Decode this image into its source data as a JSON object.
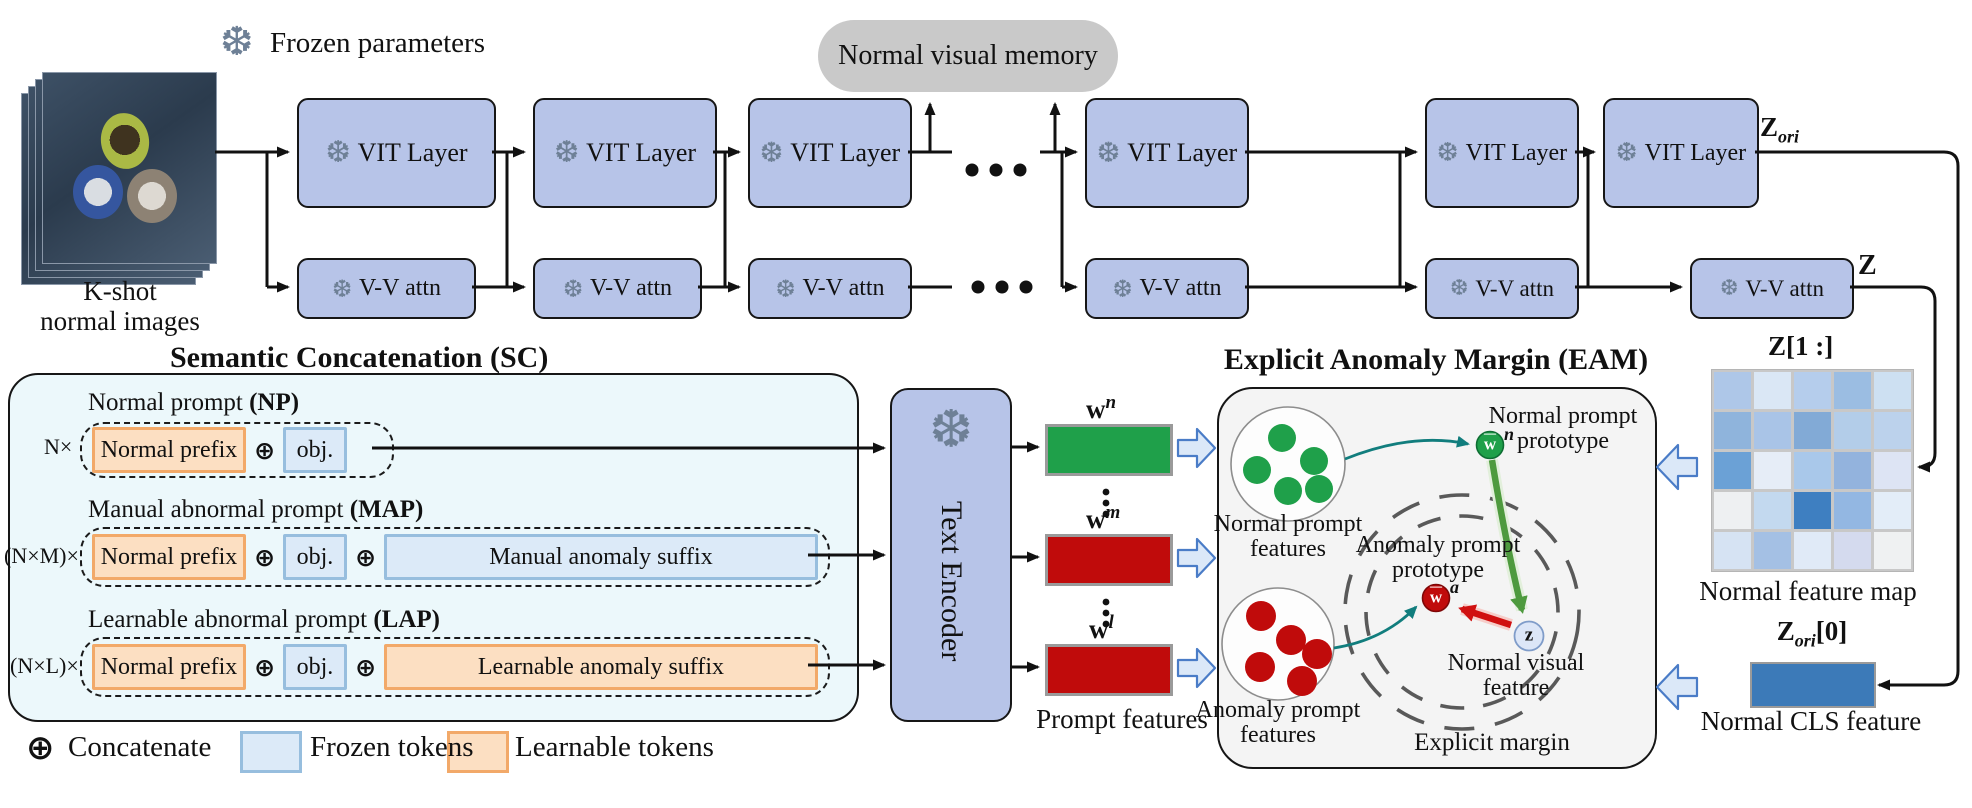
{
  "icons": {
    "snowflake": "❆",
    "dots_h": "...",
    "dots_v": "⋮"
  },
  "legend_top": {
    "label": "Frozen parameters"
  },
  "input": {
    "caption1": "K-shot",
    "caption2": "normal images"
  },
  "memory": {
    "label": "Normal visual memory"
  },
  "encoder": {
    "vit_label": "VIT Layer",
    "vv_label": "V-V attn"
  },
  "outputs": {
    "z_ori": {
      "base": "Z",
      "sub": "ori"
    },
    "z": "Z",
    "z_slice": {
      "base": "Z",
      "bracket": "[1 :]"
    },
    "z_ori0": {
      "base": "Z",
      "sub": "ori",
      "bracket": "[0]"
    },
    "feature_map_caption": "Normal feature map",
    "cls_caption": "Normal CLS feature"
  },
  "feature_map": {
    "cells": [
      "#aec7e8",
      "#dae7f5",
      "#b5cdec",
      "#9bbde2",
      "#cde0f2",
      "#8fb4dc",
      "#a9c4e7",
      "#82aad6",
      "#b3cde9",
      "#bcd2ec",
      "#6ba1d6",
      "#e6edf7",
      "#a9c8ea",
      "#93b3dd",
      "#dde4f4",
      "#eef0f2",
      "#c3d9ef",
      "#3e7fc1",
      "#93b7e2",
      "#e3edf8",
      "#d6e3f3",
      "#a4c0e4",
      "#e0eaf7",
      "#d4daee",
      "#eff1f2"
    ]
  },
  "sc": {
    "title": "Semantic Concatenation (SC)",
    "oplus": "⊕",
    "np": {
      "label": "Normal prompt ",
      "abbr": "(NP)",
      "count": "N×",
      "prefix": "Normal prefix",
      "obj": "obj."
    },
    "map": {
      "label": "Manual abnormal prompt ",
      "abbr": "(MAP)",
      "count": "(N×M)×",
      "prefix": "Normal prefix",
      "obj": "obj.",
      "suffix": "Manual anomaly suffix"
    },
    "lap": {
      "label": "Learnable abnormal prompt ",
      "abbr": "(LAP)",
      "count": "(N×L)×",
      "prefix": "Normal prefix",
      "obj": "obj.",
      "suffix": "Learnable anomaly suffix"
    }
  },
  "text_encoder": {
    "label": "Text Encoder"
  },
  "prompt_features": {
    "caption": "Prompt features",
    "wn": {
      "base": "w",
      "sup": "n"
    },
    "wm": {
      "base": "w",
      "sup": "m"
    },
    "wl": {
      "base": "w",
      "sup": "l"
    }
  },
  "eam": {
    "title": "Explicit Anomaly Margin (EAM)",
    "normal_features": {
      "line1": "Normal prompt",
      "line2": "features"
    },
    "anomaly_features": {
      "line1": "Anomaly prompt",
      "line2": "features"
    },
    "normal_proto": {
      "base": "w",
      "sup": "n",
      "label1": "Normal prompt",
      "label2": "prototype"
    },
    "anomaly_proto": {
      "base": "w",
      "sup": "a",
      "label1": "Anomaly prompt",
      "label2": "prototype"
    },
    "z_feature": {
      "symbol": "z",
      "label1": "Normal visual",
      "label2": "feature"
    },
    "margin_label": "Explicit margin"
  },
  "legend_bottom": {
    "concat_symbol": "⊕",
    "concat_label": "Concatenate",
    "frozen_label": "Frozen tokens",
    "learnable_label": "Learnable tokens"
  },
  "colors": {
    "box": "#b7c4e8",
    "memory": "#c9c9c9",
    "scbg": "#ecf8fb",
    "eambg": "#f4f4f4",
    "tokob": "#fcdfc2",
    "tokobd": "#f2a969",
    "tokbb": "#dceaf8",
    "tokbbd": "#97bede",
    "green": "#1fa04a",
    "red": "#c00b0b",
    "teal": "#117d7d",
    "agreen": "#4e9a3e",
    "ared": "#d01010",
    "znode": "#dce6f7",
    "cls": "#3c7ab8",
    "babg": "#dbe8f8",
    "babd": "#4a7cc7",
    "snow": "#6e8096"
  }
}
